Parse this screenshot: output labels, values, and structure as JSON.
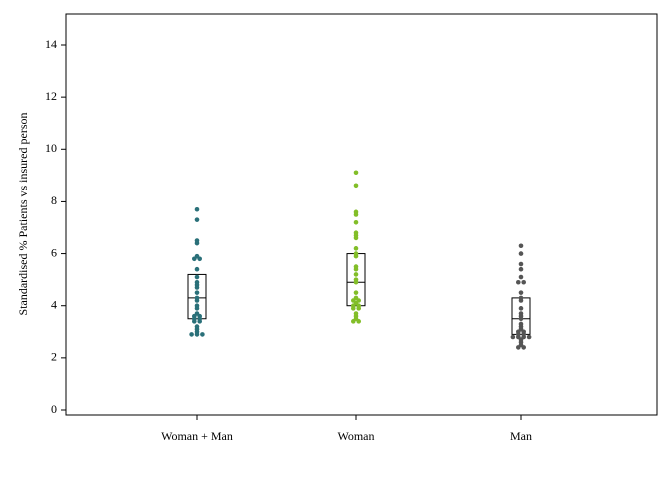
{
  "chart_data": {
    "type": "scatter",
    "subtype": "dot-strip with box (quartiles)",
    "ylabel": "Standardised % Patients vs insured person",
    "xlabel": "",
    "title": "",
    "ylim": [
      0,
      15
    ],
    "yticks": [
      "0",
      "2",
      "4",
      "6",
      "8",
      "10",
      "12",
      "14"
    ],
    "ytick_values": [
      0,
      2,
      4,
      6,
      8,
      10,
      12,
      14
    ],
    "grid": false,
    "legend": "none",
    "categories": [
      "Woman + Man",
      "Woman",
      "Man"
    ],
    "series": [
      {
        "category": "Woman + Man",
        "color": "#2a7079",
        "box": {
          "q1": 3.5,
          "median": 4.3,
          "q3": 5.2
        },
        "values": [
          7.7,
          7.3,
          6.5,
          6.4,
          5.9,
          5.8,
          5.8,
          5.4,
          5.1,
          4.9,
          4.8,
          4.7,
          4.5,
          4.3,
          4.2,
          4.0,
          3.9,
          3.7,
          3.6,
          3.6,
          3.5,
          3.5,
          3.4,
          3.4,
          3.2,
          3.1,
          3.0,
          2.9,
          2.9,
          2.9
        ]
      },
      {
        "category": "Woman",
        "color": "#82be28",
        "box": {
          "q1": 4.0,
          "median": 4.9,
          "q3": 6.0
        },
        "values": [
          9.1,
          8.6,
          7.6,
          7.5,
          7.2,
          6.8,
          6.7,
          6.6,
          6.2,
          6.0,
          5.9,
          5.5,
          5.4,
          5.2,
          5.0,
          4.9,
          4.5,
          4.3,
          4.2,
          4.2,
          4.1,
          4.0,
          4.0,
          3.9,
          3.9,
          3.7,
          3.6,
          3.5,
          3.4,
          3.4
        ]
      },
      {
        "category": "Man",
        "color": "#555555",
        "box": {
          "q1": 2.9,
          "median": 3.5,
          "q3": 4.3
        },
        "values": [
          6.3,
          6.0,
          5.6,
          5.4,
          5.1,
          4.9,
          4.9,
          4.5,
          4.3,
          4.2,
          3.9,
          3.7,
          3.6,
          3.5,
          3.3,
          3.2,
          3.1,
          3.0,
          3.0,
          2.9,
          2.9,
          2.8,
          2.8,
          2.8,
          2.8,
          2.7,
          2.6,
          2.5,
          2.4,
          2.4
        ]
      }
    ]
  }
}
